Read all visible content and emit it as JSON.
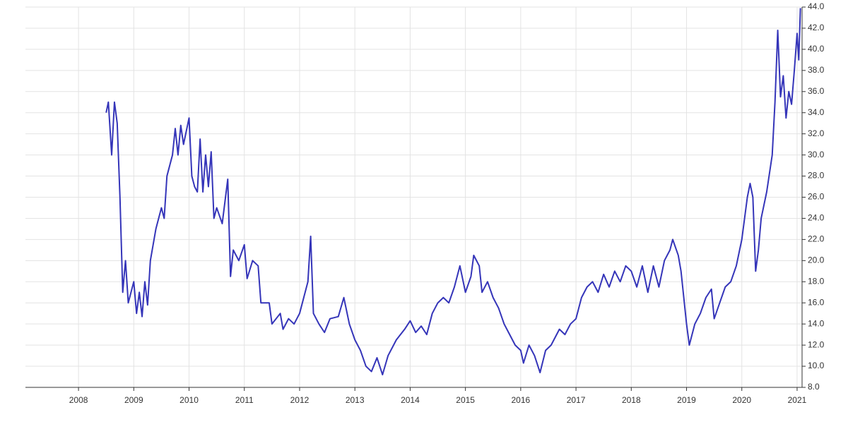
{
  "chart_data": {
    "type": "line",
    "color": "#3535b9",
    "grid": true,
    "y_axis_side": "right",
    "xlim": [
      2007.04,
      2021.09
    ],
    "xticks": [
      2008,
      2009,
      2010,
      2011,
      2012,
      2013,
      2014,
      2015,
      2016,
      2017,
      2018,
      2019,
      2020,
      2021
    ],
    "ylim": [
      8,
      44
    ],
    "yticks": [
      {
        "value": 8,
        "label": "8.0"
      },
      {
        "value": 10,
        "label": "10.0"
      },
      {
        "value": 12,
        "label": "12.0"
      },
      {
        "value": 14,
        "label": "14.0"
      },
      {
        "value": 16,
        "label": "16.0"
      },
      {
        "value": 18,
        "label": "18.0"
      },
      {
        "value": 20,
        "label": "20.0"
      },
      {
        "value": 22,
        "label": "22.0"
      },
      {
        "value": 24,
        "label": "24.0"
      },
      {
        "value": 26,
        "label": "26.0"
      },
      {
        "value": 28,
        "label": "28.0"
      },
      {
        "value": 30,
        "label": "30.0"
      },
      {
        "value": 32,
        "label": "32.0"
      },
      {
        "value": 34,
        "label": "34.0"
      },
      {
        "value": 36,
        "label": "36.0"
      },
      {
        "value": 38,
        "label": "38.0"
      },
      {
        "value": 40,
        "label": "40.0"
      },
      {
        "value": 42,
        "label": "42.0"
      },
      {
        "value": 44,
        "label": "44.0"
      }
    ],
    "x": [
      2008.5,
      2008.54,
      2008.6,
      2008.65,
      2008.7,
      2008.75,
      2008.8,
      2008.85,
      2008.9,
      2009.0,
      2009.05,
      2009.1,
      2009.15,
      2009.2,
      2009.25,
      2009.3,
      2009.4,
      2009.5,
      2009.55,
      2009.6,
      2009.7,
      2009.75,
      2009.8,
      2009.85,
      2009.9,
      2010.0,
      2010.05,
      2010.1,
      2010.15,
      2010.2,
      2010.25,
      2010.3,
      2010.35,
      2010.4,
      2010.45,
      2010.5,
      2010.6,
      2010.7,
      2010.75,
      2010.8,
      2010.9,
      2011.0,
      2011.05,
      2011.15,
      2011.25,
      2011.3,
      2011.45,
      2011.5,
      2011.65,
      2011.7,
      2011.8,
      2011.9,
      2012.0,
      2012.15,
      2012.2,
      2012.25,
      2012.35,
      2012.45,
      2012.55,
      2012.7,
      2012.8,
      2012.9,
      2013.0,
      2013.1,
      2013.2,
      2013.3,
      2013.4,
      2013.5,
      2013.6,
      2013.75,
      2013.9,
      2014.0,
      2014.1,
      2014.2,
      2014.3,
      2014.4,
      2014.5,
      2014.6,
      2014.7,
      2014.8,
      2014.9,
      2015.0,
      2015.1,
      2015.15,
      2015.25,
      2015.3,
      2015.4,
      2015.5,
      2015.6,
      2015.7,
      2015.8,
      2015.9,
      2016.0,
      2016.05,
      2016.15,
      2016.25,
      2016.35,
      2016.45,
      2016.55,
      2016.7,
      2016.8,
      2016.9,
      2017.0,
      2017.1,
      2017.2,
      2017.3,
      2017.4,
      2017.5,
      2017.6,
      2017.7,
      2017.8,
      2017.9,
      2018.0,
      2018.1,
      2018.2,
      2018.3,
      2018.4,
      2018.5,
      2018.6,
      2018.7,
      2018.75,
      2018.85,
      2018.9,
      2019.0,
      2019.05,
      2019.15,
      2019.25,
      2019.35,
      2019.45,
      2019.5,
      2019.6,
      2019.7,
      2019.8,
      2019.9,
      2020.0,
      2020.1,
      2020.15,
      2020.2,
      2020.25,
      2020.3,
      2020.35,
      2020.45,
      2020.55,
      2020.6,
      2020.65,
      2020.7,
      2020.75,
      2020.8,
      2020.85,
      2020.9,
      2020.95,
      2021.0,
      2021.03,
      2021.06
    ],
    "values": [
      34,
      35,
      30,
      35,
      33,
      26,
      17,
      20,
      16,
      18,
      15,
      17,
      14.7,
      18,
      15.8,
      20,
      23,
      25,
      24,
      28,
      30,
      32.5,
      30,
      32.8,
      31,
      33.5,
      28,
      27,
      26.5,
      31.5,
      26.5,
      30,
      27,
      30.3,
      24,
      25,
      23.5,
      27.7,
      18.5,
      21,
      20,
      21.5,
      18.3,
      20,
      19.5,
      16,
      16,
      14,
      15,
      13.5,
      14.5,
      14,
      15,
      18,
      22.3,
      15,
      14,
      13.2,
      14.5,
      14.7,
      16.5,
      14,
      12.5,
      11.5,
      10,
      9.5,
      10.8,
      9.2,
      11,
      12.5,
      13.5,
      14.3,
      13.2,
      13.8,
      13,
      15,
      16,
      16.5,
      16,
      17.5,
      19.5,
      17,
      18.5,
      20.5,
      19.5,
      17,
      18,
      16.5,
      15.5,
      14,
      13,
      12,
      11.5,
      10.3,
      12,
      11,
      9.4,
      11.5,
      12,
      13.5,
      13,
      14,
      14.5,
      16.5,
      17.5,
      18,
      17,
      18.7,
      17.5,
      19,
      18,
      19.5,
      19,
      17.5,
      19.5,
      17,
      19.5,
      17.5,
      20,
      21,
      22,
      20.5,
      19,
      14,
      12,
      14,
      15,
      16.5,
      17.3,
      14.5,
      16,
      17.5,
      18,
      19.5,
      22,
      26,
      27.3,
      26,
      19,
      21,
      24,
      26.5,
      30,
      35,
      41.8,
      35.5,
      37.5,
      33.5,
      36,
      34.8,
      38,
      41.5,
      39,
      43.9
    ]
  }
}
